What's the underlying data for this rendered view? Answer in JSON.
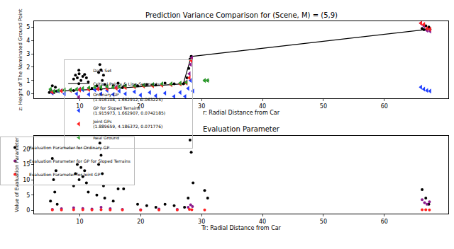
{
  "chart_data": [
    {
      "type": "scatter",
      "title": "Prediction Variance Comparison for (Scene, M) = (5,9)",
      "x_label": "r: Radial Distance from Car",
      "y_label": "z: Height of The Nominated Ground Point",
      "xlim": [
        2.5,
        70.5
      ],
      "xticks": [
        10,
        20,
        30,
        40,
        50,
        60
      ],
      "ylim": [
        -0.35,
        5.45
      ],
      "yticks": [
        0,
        1,
        2,
        3,
        4,
        5
      ],
      "grid": false,
      "legend": "center",
      "series": [
        {
          "name": "Data Set",
          "type": "scatter",
          "color": "#000000",
          "marker": "circle",
          "x": [
            5.2,
            5.5,
            5.8,
            6.0,
            6.3,
            8.5,
            9.0,
            9.3,
            9.6,
            9.9,
            10.2,
            10.5,
            10.8,
            11.1,
            11.4,
            12.0,
            12.8,
            13.1,
            13.3,
            13.5,
            13.7,
            13.9,
            14.1,
            15.5,
            16.3,
            17.2,
            19.5,
            21.0,
            22.5,
            24.0,
            25.5,
            27.2,
            27.6,
            27.9,
            28.1,
            28.3,
            30.5,
            31.0,
            66.2,
            66.8,
            67.3
          ],
          "values": [
            0.3,
            0.6,
            0.1,
            0.5,
            0.2,
            0.3,
            1.1,
            1.4,
            1.2,
            1.5,
            1.0,
            1.3,
            1.45,
            1.2,
            0.9,
            0.4,
            0.6,
            1.6,
            2.2,
            1.8,
            1.0,
            1.4,
            0.7,
            0.6,
            0.8,
            0.55,
            0.6,
            0.7,
            0.65,
            0.8,
            0.75,
            0.8,
            1.2,
            1.9,
            2.6,
            2.8,
            1.0,
            1.0,
            4.9,
            5.1,
            5.0
          ]
        },
        {
          "name": "Critical Points & Line-Segments",
          "type": "line",
          "color": "#000000",
          "marker": "circle",
          "line_style": "solid",
          "x": [
            5.0,
            6.2,
            9.0,
            13.5,
            17.0,
            22.0,
            27.0,
            28.3,
            66.5,
            67.5
          ],
          "values": [
            0.1,
            0.2,
            0.25,
            0.35,
            0.45,
            0.6,
            0.75,
            2.8,
            4.8,
            4.85
          ]
        },
        {
          "name": "Ordinary GP\n(1.916108, 1.662912, 0.063225)",
          "type": "scatter",
          "color": "#8b1a8b",
          "marker": "triangle-left",
          "x": [
            5.5,
            7,
            8.5,
            10,
            11.5,
            13,
            14.5,
            16,
            17.5,
            19,
            20.5,
            22,
            23.5,
            25,
            26.5,
            27.5,
            28.0,
            28.2,
            28.4,
            66,
            66.5,
            67,
            67.5
          ],
          "values": [
            0.15,
            0.25,
            0.3,
            0.35,
            0.35,
            0.4,
            0.45,
            0.5,
            0.55,
            0.6,
            0.62,
            0.65,
            0.7,
            0.72,
            0.78,
            0.9,
            1.5,
            2.2,
            2.7,
            5.3,
            5.1,
            4.75,
            4.7
          ]
        },
        {
          "name": "GP for Sloped Terrains\n(1.915973, 1.662907, 0.0742185)",
          "type": "scatter",
          "color": "#1f3fff",
          "marker": "triangle-left",
          "x": [
            5.5,
            6.5,
            7.5,
            8.5,
            9.5,
            10.5,
            11.5,
            12.5,
            13.5,
            14.5,
            15.5,
            16.5,
            17.5,
            19,
            20,
            21.5,
            22.5,
            24,
            25.5,
            26.5,
            27.3,
            27.8,
            28.2,
            28.6,
            66,
            66.5,
            67,
            67.5
          ],
          "values": [
            0.05,
            0.2,
            0.0,
            0.25,
            0.0,
            0.3,
            -0.05,
            0.3,
            0.0,
            0.25,
            -0.05,
            0.2,
            0.0,
            0.15,
            -0.1,
            0.1,
            -0.15,
            0.05,
            -0.2,
            0.1,
            -0.2,
            0.4,
            1.0,
            0.2,
            0.5,
            0.35,
            0.25,
            0.2
          ]
        },
        {
          "name": "Joint GPs\n(1.889659, 4.186372, 0.071776)",
          "type": "scatter",
          "color": "#ff2020",
          "marker": "triangle-left",
          "x": [
            5.5,
            7,
            8.5,
            10,
            11.5,
            13,
            14.5,
            16,
            17.5,
            19,
            20.5,
            22,
            23.5,
            25,
            26.5,
            27.5,
            28.0,
            28.3,
            66,
            66.5,
            67,
            67.5
          ],
          "values": [
            0.12,
            0.2,
            0.25,
            0.28,
            0.32,
            0.35,
            0.38,
            0.42,
            0.47,
            0.52,
            0.57,
            0.6,
            0.64,
            0.68,
            0.73,
            0.8,
            1.2,
            2.5,
            5.3,
            5.2,
            4.9,
            4.85
          ]
        },
        {
          "name": "Real Ground",
          "type": "scatter",
          "color": "#2ca02c",
          "marker": "triangle-left",
          "x": [
            5.2,
            5.8,
            6.5,
            7.5,
            8.5,
            9.5,
            10.5,
            11.5,
            12.5,
            13.5,
            14.5,
            15.5,
            16.5,
            17.5,
            19,
            20.5,
            22,
            23.5,
            25,
            26.5,
            27.5,
            30.5,
            31
          ],
          "values": [
            0.35,
            0.2,
            0.25,
            0.3,
            0.3,
            0.35,
            0.4,
            0.45,
            0.5,
            0.5,
            0.55,
            0.5,
            0.55,
            0.6,
            0.6,
            0.65,
            0.7,
            0.75,
            0.75,
            0.8,
            0.85,
            1.0,
            1.0
          ]
        }
      ]
    },
    {
      "type": "scatter",
      "title": "Evaluation Parameter",
      "x_label": "Tr: Radial Distance from Car",
      "y_label": "Value of Evaluation Parameter",
      "xlim": [
        2.5,
        70.5
      ],
      "xticks": [
        10,
        20,
        30,
        40,
        50,
        60
      ],
      "ylim": [
        -1.2,
        24.5
      ],
      "yticks": [
        0,
        5,
        10,
        15,
        20
      ],
      "grid": false,
      "legend": "upper right",
      "series": [
        {
          "name": "Evaluation Parameter for Ordinary GP",
          "type": "scatter",
          "color": "#000000",
          "marker": "circle",
          "x": [
            5.2,
            5.5,
            5.7,
            5.9,
            6.1,
            6.3,
            9.0,
            9.3,
            9.6,
            9.9,
            10.2,
            10.5,
            10.8,
            11.1,
            11.4,
            12.8,
            13.1,
            13.3,
            13.5,
            13.7,
            13.9,
            14.1,
            15.5,
            16.3,
            17.2,
            19.5,
            21,
            22.5,
            24,
            25.5,
            27.2,
            27.8,
            28.1,
            28.3,
            28.6,
            30.5,
            31,
            66.2,
            66.8,
            67.3
          ],
          "values": [
            3,
            17,
            10,
            6,
            13,
            2,
            8,
            12,
            15,
            10,
            14,
            11,
            13,
            9,
            6,
            5,
            15,
            22,
            18,
            12,
            8,
            4,
            3,
            7,
            7,
            2,
            1.5,
            1,
            2,
            1.5,
            1,
            4,
            23,
            19,
            9,
            6.5,
            4,
            6.8,
            4,
            2
          ]
        },
        {
          "name": "Evaluation Parameter for GP for Sloped Terrains",
          "type": "scatter",
          "color": "#8b1a8b",
          "marker": "circle",
          "x": [
            5.5,
            7,
            9,
            10.5,
            12,
            13.5,
            15,
            17,
            20,
            23,
            26,
            27.8,
            28.2,
            28.5,
            66.2,
            66.6,
            67,
            67.4
          ],
          "values": [
            0.3,
            0.5,
            0.8,
            0.6,
            0.4,
            1.0,
            0.5,
            0.3,
            0.2,
            0.4,
            0.3,
            1.0,
            1.8,
            1.2,
            3.5,
            2.5,
            2.0,
            2.8
          ]
        },
        {
          "name": "Evaluation Parameter for Joint GP",
          "type": "scatter",
          "color": "#ff2020",
          "marker": "circle",
          "x": [
            5.5,
            7,
            9,
            10.5,
            12,
            13.5,
            15,
            17,
            20,
            23,
            26,
            28,
            28.4,
            30.5,
            66.2,
            66.8,
            67.4
          ],
          "values": [
            0.1,
            0.1,
            0.2,
            0.15,
            0.1,
            0.2,
            0.1,
            0.1,
            0.05,
            0.1,
            0.1,
            0.3,
            0.2,
            0.1,
            0.2,
            0.15,
            0.1
          ]
        }
      ]
    }
  ]
}
